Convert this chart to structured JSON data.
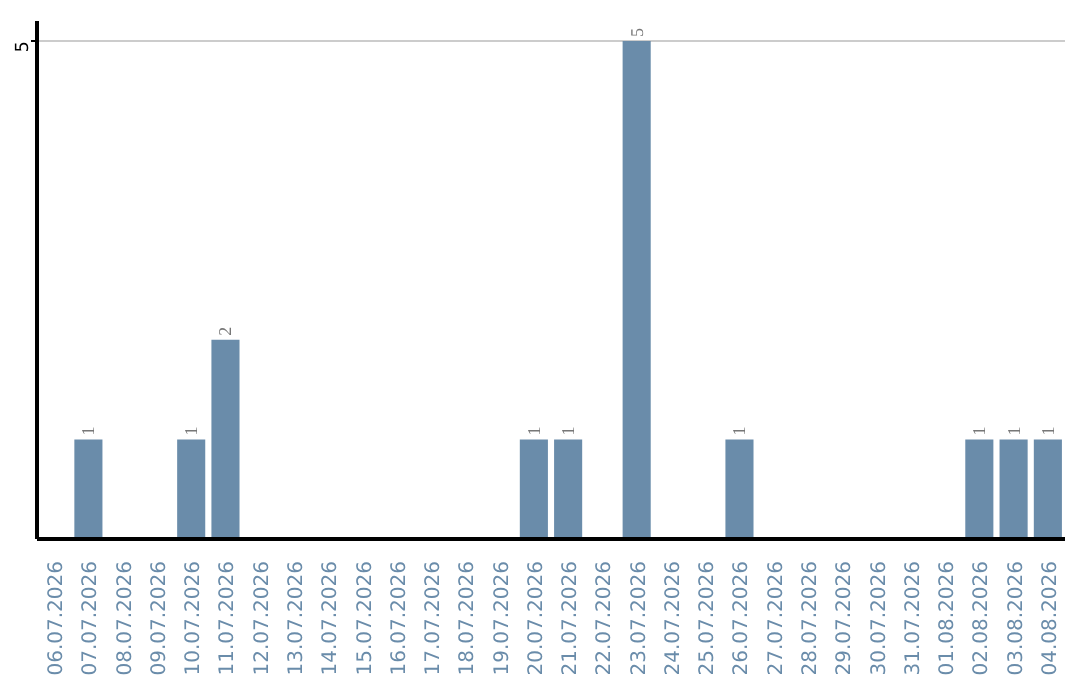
{
  "chart_data": {
    "type": "bar",
    "categories": [
      "06.07.2026",
      "07.07.2026",
      "08.07.2026",
      "09.07.2026",
      "10.07.2026",
      "11.07.2026",
      "12.07.2026",
      "13.07.2026",
      "14.07.2026",
      "15.07.2026",
      "16.07.2026",
      "17.07.2026",
      "18.07.2026",
      "19.07.2026",
      "20.07.2026",
      "21.07.2026",
      "22.07.2026",
      "23.07.2026",
      "24.07.2026",
      "25.07.2026",
      "26.07.2026",
      "27.07.2026",
      "28.07.2026",
      "29.07.2026",
      "30.07.2026",
      "31.07.2026",
      "01.08.2026",
      "02.08.2026",
      "03.08.2026",
      "04.08.2026"
    ],
    "values": [
      0,
      1,
      0,
      0,
      1,
      2,
      0,
      0,
      0,
      0,
      0,
      0,
      0,
      0,
      1,
      1,
      0,
      5,
      0,
      0,
      1,
      0,
      0,
      0,
      0,
      0,
      0,
      1,
      1,
      1
    ],
    "value_labels": [
      null,
      "1",
      null,
      null,
      "1",
      "2",
      null,
      null,
      null,
      null,
      null,
      null,
      null,
      null,
      "1",
      "1",
      null,
      "5",
      null,
      null,
      "1",
      null,
      null,
      null,
      null,
      null,
      null,
      "1",
      "1",
      "1"
    ],
    "color": "#6a8caa",
    "ylim": [
      0,
      5.2
    ],
    "yticks": [
      5
    ],
    "grid": "y"
  }
}
